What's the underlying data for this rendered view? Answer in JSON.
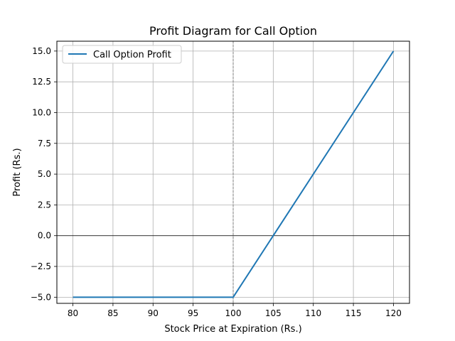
{
  "chart_data": {
    "type": "line",
    "title": "Profit Diagram for Call Option",
    "xlabel": "Stock Price at Expiration (Rs.)",
    "ylabel": "Profit (Rs.)",
    "xlim": [
      78,
      122
    ],
    "ylim": [
      -5.5,
      15.8
    ],
    "xticks": [
      80,
      85,
      90,
      95,
      100,
      105,
      110,
      115,
      120
    ],
    "xtick_labels": [
      "80",
      "85",
      "90",
      "95",
      "100",
      "105",
      "110",
      "115",
      "120"
    ],
    "yticks": [
      -5.0,
      -2.5,
      0.0,
      2.5,
      5.0,
      7.5,
      10.0,
      12.5,
      15.0
    ],
    "ytick_labels": [
      "−5.0",
      "−2.5",
      "0.0",
      "2.5",
      "5.0",
      "7.5",
      "10.0",
      "12.5",
      "15.0"
    ],
    "grid": true,
    "legend_position": "top-left",
    "reference_lines": {
      "horizontal_y": 0,
      "vertical_x": 100
    },
    "series": [
      {
        "name": "Call Option Profit",
        "color": "#1f77b4",
        "x": [
          80,
          100,
          120
        ],
        "y": [
          -5,
          -5,
          15
        ]
      }
    ]
  }
}
